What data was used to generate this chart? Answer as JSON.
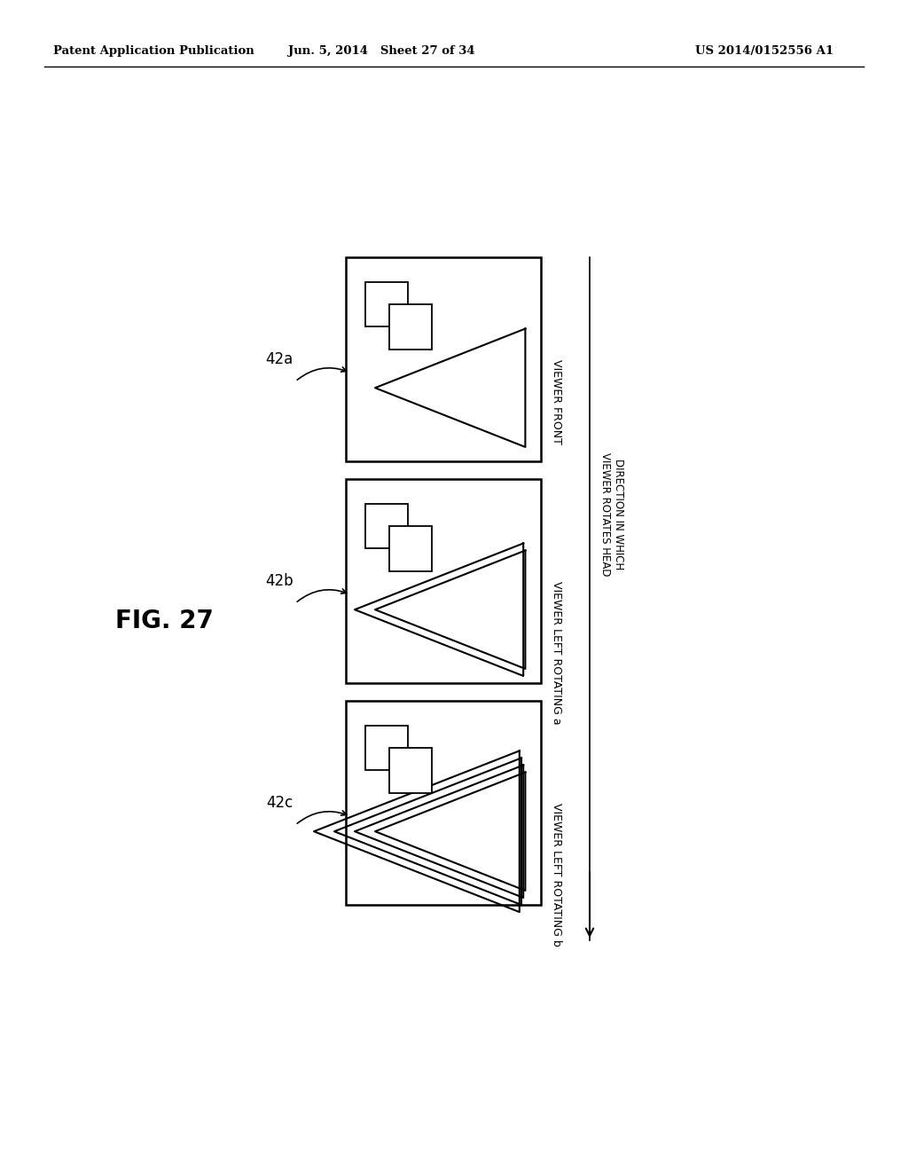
{
  "header_left": "Patent Application Publication",
  "header_mid": "Jun. 5, 2014  Sheet 27 of 34",
  "header_right": "US 2014/0152556 A1",
  "title": "FIG. 27",
  "bg_color": "#ffffff",
  "box_configs": [
    {
      "label": "42a",
      "n_triangles": 1
    },
    {
      "label": "42b",
      "n_triangles": 2
    },
    {
      "label": "42c",
      "n_triangles": 4
    }
  ],
  "viewer_labels": [
    "VIEWER FRONT",
    "VIEWER LEFT ROTATING a",
    "VIEWER LEFT ROTATING b"
  ],
  "direction_label_line1": "DIRECTION IN WHICH",
  "direction_label_line2": "VIEWER ROTATES HEAD"
}
